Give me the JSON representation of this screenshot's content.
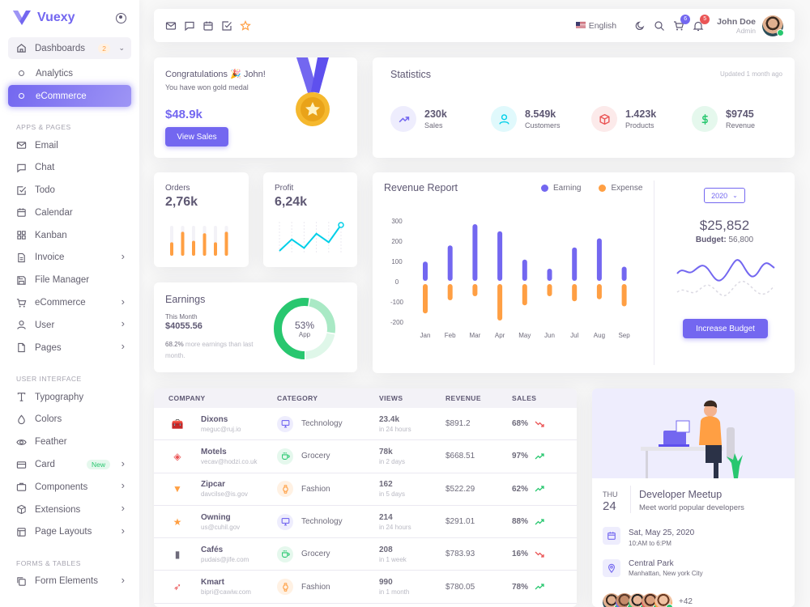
{
  "brand": {
    "name": "Vuexy"
  },
  "sidebar": {
    "dashboards": {
      "label": "Dashboards",
      "badge": "2"
    },
    "sub": [
      {
        "label": "Analytics"
      },
      {
        "label": "eCommerce"
      }
    ],
    "section_apps": "APPS & PAGES",
    "apps": [
      {
        "label": "Email",
        "icon": "mail-icon",
        "chevron": false
      },
      {
        "label": "Chat",
        "icon": "chat-icon",
        "chevron": false
      },
      {
        "label": "Todo",
        "icon": "check-square-icon",
        "chevron": false
      },
      {
        "label": "Calendar",
        "icon": "calendar-icon",
        "chevron": false
      },
      {
        "label": "Kanban",
        "icon": "grid-icon",
        "chevron": false
      },
      {
        "label": "Invoice",
        "icon": "file-text-icon",
        "chevron": true
      },
      {
        "label": "File Manager",
        "icon": "save-icon",
        "chevron": false
      },
      {
        "label": "eCommerce",
        "icon": "cart-icon",
        "chevron": true
      },
      {
        "label": "User",
        "icon": "user-icon",
        "chevron": true
      },
      {
        "label": "Pages",
        "icon": "file-icon",
        "chevron": true
      }
    ],
    "section_ui": "USER INTERFACE",
    "ui": [
      {
        "label": "Typography",
        "icon": "type-icon",
        "chevron": false
      },
      {
        "label": "Colors",
        "icon": "droplet-icon",
        "chevron": false
      },
      {
        "label": "Feather",
        "icon": "eye-icon",
        "chevron": false
      },
      {
        "label": "Card",
        "icon": "credit-card-icon",
        "chevron": true,
        "badge": "New"
      },
      {
        "label": "Components",
        "icon": "briefcase-icon",
        "chevron": true
      },
      {
        "label": "Extensions",
        "icon": "box-icon",
        "chevron": true
      },
      {
        "label": "Page Layouts",
        "icon": "layout-icon",
        "chevron": true
      }
    ],
    "section_forms": "FORMS & TABLES",
    "forms": [
      {
        "label": "Form Elements",
        "icon": "copy-icon",
        "chevron": true
      }
    ]
  },
  "topbar": {
    "language": "English",
    "cart_count": "6",
    "notif_count": "5",
    "user_name": "John Doe",
    "user_role": "Admin",
    "colors": {
      "cart": "#7367f0",
      "notif": "#ea5455"
    }
  },
  "congrats": {
    "title": "Congratulations 🎉 John!",
    "subtitle": "You have won gold medal",
    "amount": "$48.9k",
    "button": "View Sales"
  },
  "statistics": {
    "title": "Statistics",
    "updated": "Updated 1 month ago",
    "items": [
      {
        "value": "230k",
        "label": "Sales",
        "icon": "trending-up-icon",
        "color": "#7367f0",
        "bg": "#eeedfd"
      },
      {
        "value": "8.549k",
        "label": "Customers",
        "icon": "user-icon",
        "color": "#00cfe8",
        "bg": "#e0f9fc"
      },
      {
        "value": "1.423k",
        "label": "Products",
        "icon": "box-icon",
        "color": "#ea5455",
        "bg": "#fceaea"
      },
      {
        "value": "$9745",
        "label": "Revenue",
        "icon": "dollar-icon",
        "color": "#28c76f",
        "bg": "#e5f8ed"
      }
    ]
  },
  "orders": {
    "title": "Orders",
    "value": "2,76k",
    "bars": [
      0.45,
      0.8,
      0.5,
      0.75,
      0.45,
      0.8
    ]
  },
  "profit": {
    "title": "Profit",
    "value": "6,24k",
    "line": [
      0,
      20,
      5,
      30,
      15,
      45
    ]
  },
  "earnings": {
    "title": "Earnings",
    "period": "This Month",
    "amount": "$4055.56",
    "note_strong": "68.2%",
    "note": " more earnings than last month.",
    "donut_label": "53%",
    "donut_sub": "App",
    "donut_parts": [
      0.53,
      0.25,
      0.22
    ]
  },
  "revenue": {
    "title": "Revenue Report",
    "legend": [
      {
        "name": "Earning",
        "color": "#7367f0"
      },
      {
        "name": "Expense",
        "color": "#ff9f43"
      }
    ],
    "year": "2020",
    "total": "$25,852",
    "budget_label": "Budget:",
    "budget_value": "56,800",
    "button": "Increase Budget"
  },
  "chart_data": {
    "type": "bar",
    "categories": [
      "Jan",
      "Feb",
      "Mar",
      "Apr",
      "May",
      "Jun",
      "Jul",
      "Aug",
      "Sep"
    ],
    "series": [
      {
        "name": "Earning",
        "values": [
          95,
          175,
          280,
          245,
          105,
          60,
          165,
          210,
          70
        ]
      },
      {
        "name": "Expense",
        "values": [
          -145,
          -80,
          -60,
          -180,
          -105,
          -60,
          -85,
          -75,
          -110
        ]
      }
    ],
    "yticks": [
      "300",
      "200",
      "100",
      "0",
      "-100",
      "-200"
    ],
    "ylim": [
      -200,
      300
    ],
    "legend": "top-right"
  },
  "table": {
    "headers": [
      "COMPANY",
      "CATEGORY",
      "VIEWS",
      "REVENUE",
      "SALES"
    ],
    "rows": [
      {
        "company": "Dixons",
        "email": "meguc@ruj.io",
        "logo": "toolbox-icon",
        "logo_color": "#ea5455",
        "category": "Technology",
        "cat_icon": "monitor-icon",
        "cat_color": "#7367f0",
        "cat_bg": "#eeedfd",
        "views": "23.4k",
        "views_sub": "in 24 hours",
        "revenue": "$891.2",
        "sales": "68%",
        "trend": "down"
      },
      {
        "company": "Motels",
        "email": "vecav@hodzi.co.uk",
        "logo": "pin-icon",
        "logo_color": "#ea5455",
        "category": "Grocery",
        "cat_icon": "coffee-icon",
        "cat_color": "#28c76f",
        "cat_bg": "#e5f8ed",
        "views": "78k",
        "views_sub": "in 2 days",
        "revenue": "$668.51",
        "sales": "97%",
        "trend": "up"
      },
      {
        "company": "Zipcar",
        "email": "davcilse@is.gov",
        "logo": "brush-icon",
        "logo_color": "#ff9f43",
        "category": "Fashion",
        "cat_icon": "watch-icon",
        "cat_color": "#ff9f43",
        "cat_bg": "#fff1e3",
        "views": "162",
        "views_sub": "in 5 days",
        "revenue": "$522.29",
        "sales": "62%",
        "trend": "up"
      },
      {
        "company": "Owning",
        "email": "us@cuhil.gov",
        "logo": "star-icon",
        "logo_color": "#ff9f43",
        "category": "Technology",
        "cat_icon": "monitor-icon",
        "cat_color": "#7367f0",
        "cat_bg": "#eeedfd",
        "views": "214",
        "views_sub": "in 24 hours",
        "revenue": "$291.01",
        "sales": "88%",
        "trend": "up"
      },
      {
        "company": "Cafés",
        "email": "pudais@jife.com",
        "logo": "book-icon",
        "logo_color": "#6e6b7b",
        "category": "Grocery",
        "cat_icon": "coffee-icon",
        "cat_color": "#28c76f",
        "cat_bg": "#e5f8ed",
        "views": "208",
        "views_sub": "in 1 week",
        "revenue": "$783.93",
        "sales": "16%",
        "trend": "down"
      },
      {
        "company": "Kmart",
        "email": "bipri@cawiw.com",
        "logo": "rocket-icon",
        "logo_color": "#ea5455",
        "category": "Fashion",
        "cat_icon": "watch-icon",
        "cat_color": "#ff9f43",
        "cat_bg": "#fff1e3",
        "views": "990",
        "views_sub": "in 1 month",
        "revenue": "$780.05",
        "sales": "78%",
        "trend": "up"
      }
    ]
  },
  "meetup": {
    "day": "THU",
    "date": "24",
    "title": "Developer Meetup",
    "subtitle": "Meet world popular developers",
    "when": "Sat, May 25, 2020",
    "time": "10:AM to 6:PM",
    "where": "Central Park",
    "address": "Manhattan, New york City",
    "more": "+42"
  }
}
